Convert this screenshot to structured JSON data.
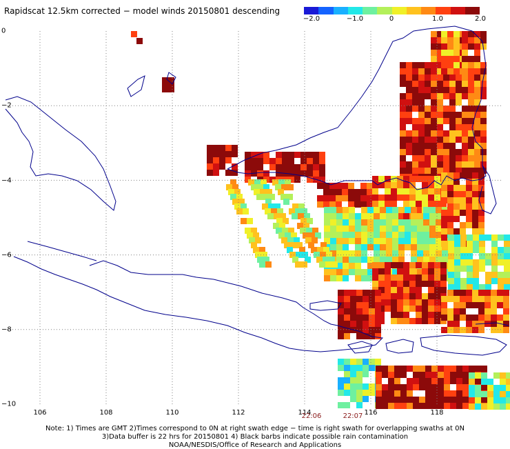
{
  "title": "Rapidscat 12.5km corrected − model winds 20150801 descending",
  "colorbar": {
    "labels": [
      "−2.0",
      "−1.0",
      "0",
      "1.0",
      "2.0"
    ],
    "colors": [
      "#1a1ad6",
      "#1463ff",
      "#19b0ff",
      "#22e8e8",
      "#6ef0a0",
      "#b4f05a",
      "#f0f028",
      "#ffc21e",
      "#ff8a14",
      "#ff4010",
      "#d01010",
      "#8c0a0a"
    ]
  },
  "axes": {
    "y_labels": [
      "0",
      "−2",
      "−4",
      "−6",
      "−8",
      "−10"
    ],
    "x_labels": [
      "106",
      "108",
      "110",
      "112",
      "114",
      "116",
      "118"
    ]
  },
  "times": [
    "22:06",
    "22:07"
  ],
  "notes": [
    "Note: 1) Times are GMT 2)Times correspond to 0N at right swath edge − time is right swath for overlapping swaths at 0N",
    "3)Data buffer is 22 hrs for 20150801 4) Black barbs indicate possible rain contamination",
    "NOAA/NESDIS/Office of Research and Applications"
  ],
  "map_data": {
    "lon_range": [
      105,
      120
    ],
    "lat_range": [
      -10,
      0
    ],
    "grid_lons": [
      106,
      108,
      110,
      112,
      114,
      116,
      118
    ],
    "grid_lats": [
      -2,
      -4,
      -6,
      -8
    ],
    "coast_color": "#00008b",
    "grid_color": "#808080"
  }
}
